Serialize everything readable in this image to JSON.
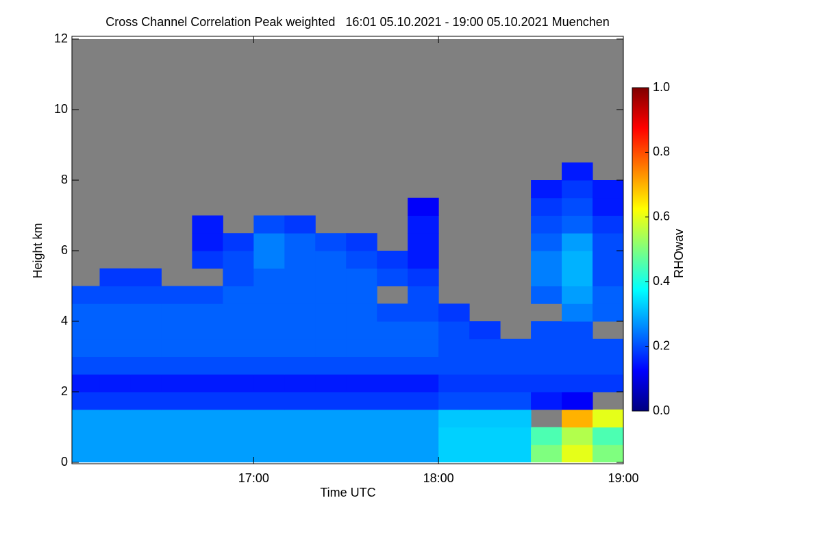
{
  "chart_data": {
    "type": "heatmap",
    "title": "Cross Channel Correlation Peak weighted   16:01 05.10.2021 - 19:00 05.10.2021 Muenchen",
    "xlabel": "Time UTC",
    "ylabel": "Height km",
    "colorbar_label": "RHOwav",
    "xlim": [
      16.0167,
      19.0
    ],
    "xticks": [
      {
        "value": 17,
        "label": "17:00"
      },
      {
        "value": 18,
        "label": "18:00"
      },
      {
        "value": 19,
        "label": "19:00"
      }
    ],
    "ylim": [
      0,
      12
    ],
    "yticks": [
      0,
      2,
      4,
      6,
      8,
      10,
      12
    ],
    "clim": [
      0,
      1
    ],
    "cticks": [
      {
        "value": 0,
        "label": "0.0"
      },
      {
        "value": 0.2,
        "label": "0.2"
      },
      {
        "value": 0.4,
        "label": "0.4"
      },
      {
        "value": 0.6,
        "label": "0.6"
      },
      {
        "value": 0.8,
        "label": "0.8"
      },
      {
        "value": 1,
        "label": "1.0"
      }
    ],
    "colorscale": [
      "#00007f",
      "#0000ff",
      "#007fff",
      "#00ffff",
      "#7fff7f",
      "#ffff00",
      "#ff7f00",
      "#ff0000",
      "#7f0000"
    ],
    "missing_color": "#808080",
    "xbins": [
      16.0,
      16.1667,
      16.3333,
      16.5,
      16.6667,
      16.8333,
      17.0,
      17.1667,
      17.3333,
      17.5,
      17.6667,
      17.8333,
      18.0,
      18.1667,
      18.3333,
      18.5,
      18.6667,
      18.8333,
      19.0
    ],
    "ybins": [
      0,
      0.5,
      1,
      1.5,
      2,
      2.5,
      3,
      3.5,
      4,
      4.5,
      5,
      5.5,
      6,
      6.5,
      7,
      7.5,
      8,
      8.5,
      9,
      9.5,
      10,
      10.5,
      11,
      11.5,
      12
    ],
    "values": [
      [
        0.28,
        0.28,
        0.28,
        0.28,
        0.28,
        0.28,
        0.28,
        0.28,
        0.28,
        0.28,
        0.28,
        0.28,
        0.33,
        0.33,
        0.33,
        0.5,
        0.6,
        0.5
      ],
      [
        0.28,
        0.28,
        0.28,
        0.28,
        0.28,
        0.28,
        0.28,
        0.28,
        0.28,
        0.28,
        0.28,
        0.28,
        0.33,
        0.33,
        0.33,
        0.45,
        0.55,
        0.45
      ],
      [
        0.28,
        0.28,
        0.28,
        0.28,
        0.28,
        0.28,
        0.28,
        0.28,
        0.28,
        0.28,
        0.28,
        0.28,
        0.32,
        0.32,
        0.32,
        null,
        0.7,
        0.6
      ],
      [
        0.18,
        0.18,
        0.18,
        0.18,
        0.18,
        0.18,
        0.18,
        0.18,
        0.18,
        0.18,
        0.18,
        0.18,
        0.2,
        0.2,
        0.2,
        0.15,
        0.12,
        null
      ],
      [
        0.15,
        0.15,
        0.15,
        0.15,
        0.15,
        0.15,
        0.15,
        0.15,
        0.15,
        0.15,
        0.15,
        0.15,
        0.18,
        0.18,
        0.18,
        0.18,
        0.18,
        0.18
      ],
      [
        0.2,
        0.2,
        0.2,
        0.2,
        0.2,
        0.2,
        0.2,
        0.2,
        0.2,
        0.2,
        0.2,
        0.2,
        0.2,
        0.2,
        0.2,
        0.2,
        0.2,
        0.2
      ],
      [
        0.22,
        0.22,
        0.22,
        0.22,
        0.22,
        0.22,
        0.22,
        0.22,
        0.22,
        0.22,
        0.22,
        0.22,
        0.2,
        0.2,
        0.2,
        0.2,
        0.2,
        0.2
      ],
      [
        0.22,
        0.22,
        0.22,
        0.22,
        0.22,
        0.22,
        0.22,
        0.22,
        0.22,
        0.22,
        0.22,
        0.22,
        0.2,
        0.18,
        null,
        0.2,
        0.2,
        null
      ],
      [
        0.22,
        0.22,
        0.22,
        0.22,
        0.22,
        0.22,
        0.22,
        0.22,
        0.22,
        0.22,
        0.2,
        0.2,
        0.18,
        null,
        null,
        null,
        0.25,
        0.22
      ],
      [
        0.2,
        0.2,
        0.2,
        0.2,
        0.2,
        0.22,
        0.22,
        0.22,
        0.22,
        0.22,
        null,
        0.2,
        null,
        null,
        null,
        0.22,
        0.28,
        0.22
      ],
      [
        null,
        0.18,
        0.18,
        null,
        null,
        0.2,
        0.22,
        0.22,
        0.22,
        0.22,
        0.2,
        0.18,
        null,
        null,
        null,
        0.25,
        0.3,
        0.2
      ],
      [
        null,
        null,
        null,
        null,
        0.18,
        0.2,
        0.25,
        0.22,
        0.22,
        0.2,
        0.18,
        0.15,
        null,
        null,
        null,
        0.25,
        0.3,
        0.2
      ],
      [
        null,
        null,
        null,
        null,
        0.15,
        0.18,
        0.25,
        0.22,
        0.2,
        0.18,
        null,
        0.15,
        null,
        null,
        null,
        0.22,
        0.28,
        0.2
      ],
      [
        null,
        null,
        null,
        null,
        0.15,
        null,
        0.2,
        0.18,
        null,
        null,
        null,
        0.15,
        null,
        null,
        null,
        0.2,
        0.22,
        0.18
      ],
      [
        null,
        null,
        null,
        null,
        null,
        null,
        null,
        null,
        null,
        null,
        null,
        0.12,
        null,
        null,
        null,
        0.18,
        0.2,
        0.15
      ],
      [
        null,
        null,
        null,
        null,
        null,
        null,
        null,
        null,
        null,
        null,
        null,
        null,
        null,
        null,
        null,
        0.15,
        0.18,
        0.15
      ],
      [
        null,
        null,
        null,
        null,
        null,
        null,
        null,
        null,
        null,
        null,
        null,
        null,
        null,
        null,
        null,
        null,
        0.15,
        null
      ],
      [
        null,
        null,
        null,
        null,
        null,
        null,
        null,
        null,
        null,
        null,
        null,
        null,
        null,
        null,
        null,
        null,
        null,
        null
      ],
      [
        null,
        null,
        null,
        null,
        null,
        null,
        null,
        null,
        null,
        null,
        null,
        null,
        null,
        null,
        null,
        null,
        null,
        null
      ],
      [
        null,
        null,
        null,
        null,
        null,
        null,
        null,
        null,
        null,
        null,
        null,
        null,
        null,
        null,
        null,
        null,
        null,
        null
      ],
      [
        null,
        null,
        null,
        null,
        null,
        null,
        null,
        null,
        null,
        null,
        null,
        null,
        null,
        null,
        null,
        null,
        null,
        null
      ],
      [
        null,
        null,
        null,
        null,
        null,
        null,
        null,
        null,
        null,
        null,
        null,
        null,
        null,
        null,
        null,
        null,
        null,
        null
      ],
      [
        null,
        null,
        null,
        null,
        null,
        null,
        null,
        null,
        null,
        null,
        null,
        null,
        null,
        null,
        null,
        null,
        null,
        null
      ],
      [
        null,
        null,
        null,
        null,
        null,
        null,
        null,
        null,
        null,
        null,
        null,
        null,
        null,
        null,
        null,
        null,
        null,
        null
      ]
    ]
  }
}
